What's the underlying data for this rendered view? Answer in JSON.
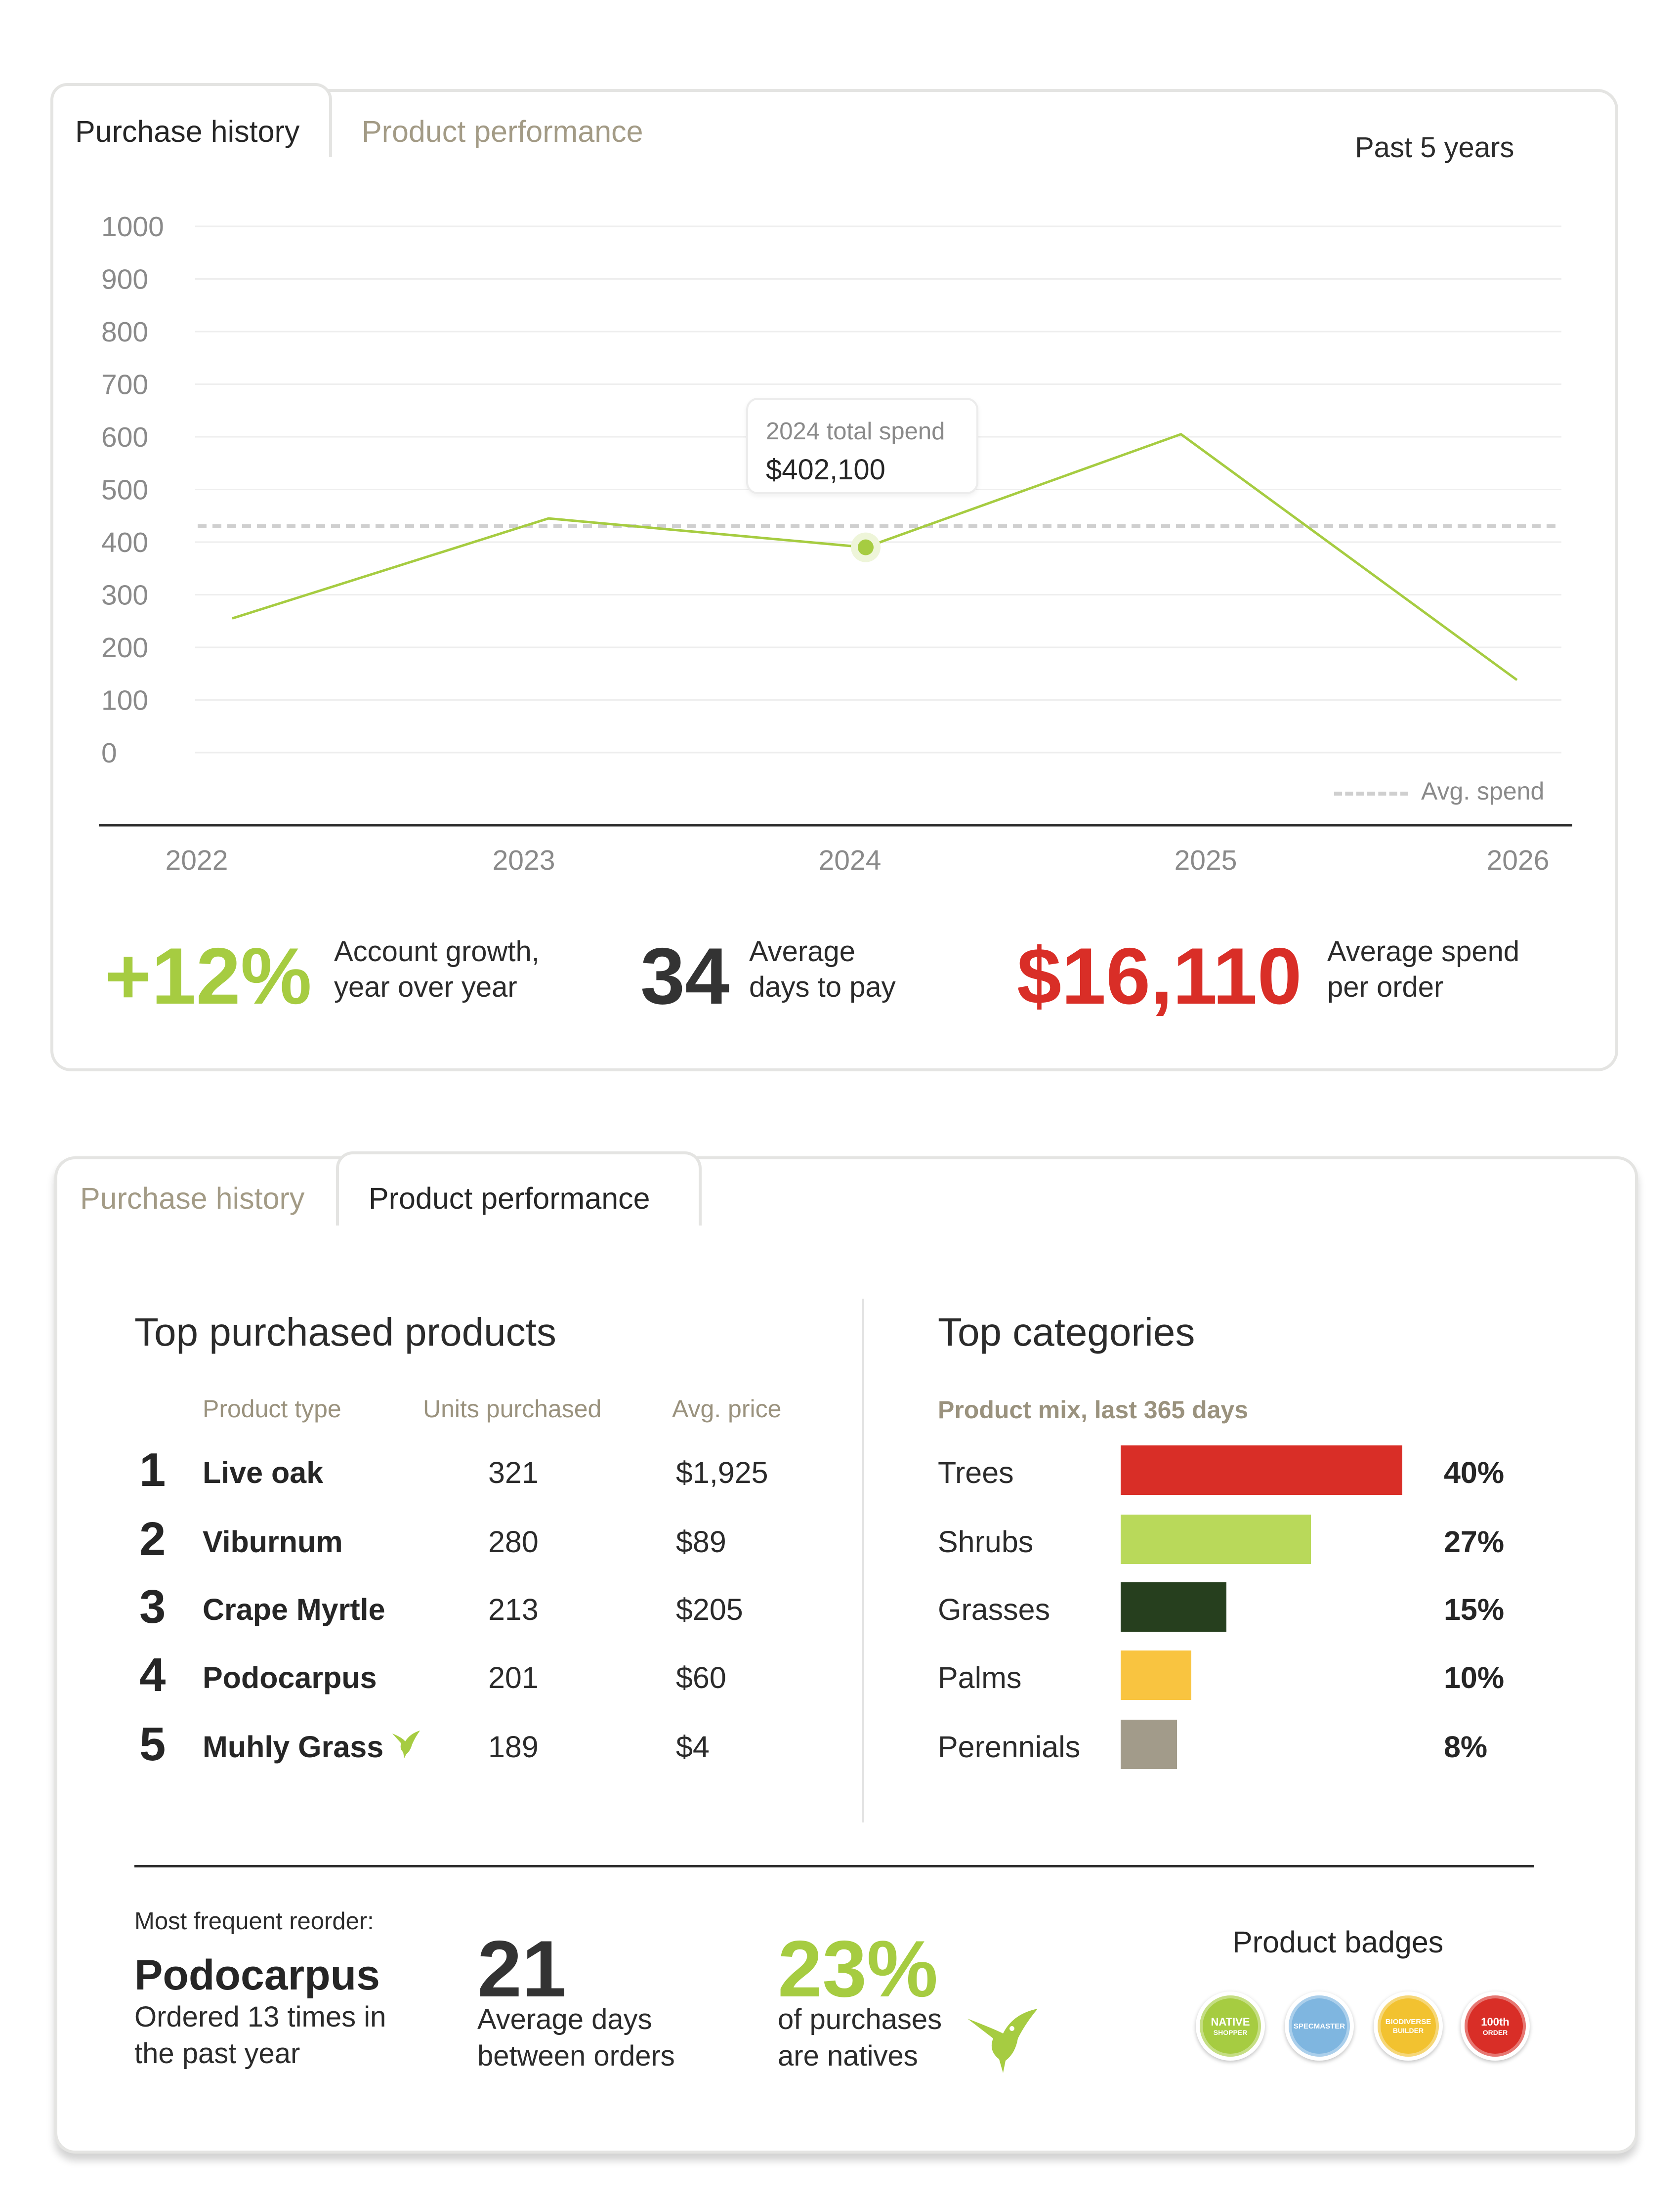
{
  "panel1": {
    "tabs": [
      {
        "label": "Purchase history",
        "active": true
      },
      {
        "label": "Product performance",
        "active": false
      }
    ],
    "period": "Past 5 years",
    "tooltip": {
      "title": "2024 total spend",
      "value": "$402,100"
    },
    "legend": "Avg. spend",
    "stats": [
      {
        "value": "+12%",
        "label_line1": "Account growth,",
        "label_line2": "year over year",
        "color": "#a6cc41"
      },
      {
        "value": "34",
        "label_line1": "Average",
        "label_line2": "days to pay",
        "color": "#333333"
      },
      {
        "value": "$16,110",
        "label_line1": "Average spend",
        "label_line2": "per order",
        "color": "#d92e27"
      }
    ]
  },
  "chart_data": {
    "type": "line",
    "x": [
      "2022",
      "2023",
      "2024",
      "2025",
      "2026"
    ],
    "yticks": [
      "0",
      "100",
      "200",
      "300",
      "400",
      "500",
      "600",
      "700",
      "800",
      "900",
      "1000"
    ],
    "ylim": [
      0,
      1000
    ],
    "series": [
      {
        "values": [
          255,
          445,
          390,
          605,
          138
        ],
        "color": "#a6cc41"
      },
      {
        "name": "Avg. spend",
        "values": [
          430,
          430,
          430,
          430,
          430
        ],
        "style": "dashed",
        "color": "#cfcfcf"
      }
    ],
    "highlight_index": 2,
    "grid": true
  },
  "panel2": {
    "tabs": [
      {
        "label": "Purchase history",
        "active": false
      },
      {
        "label": "Product performance",
        "active": true
      }
    ],
    "top_products": {
      "title": "Top purchased products",
      "headers": [
        "Product type",
        "Units purchased",
        "Avg. price"
      ],
      "rows": [
        {
          "rank": "1",
          "name": "Live oak",
          "units": "321",
          "price": "$1,925",
          "native": false
        },
        {
          "rank": "2",
          "name": "Viburnum",
          "units": "280",
          "price": "$89",
          "native": false
        },
        {
          "rank": "3",
          "name": "Crape Myrtle",
          "units": "213",
          "price": "$205",
          "native": false
        },
        {
          "rank": "4",
          "name": "Podocarpus",
          "units": "201",
          "price": "$60",
          "native": false
        },
        {
          "rank": "5",
          "name": "Muhly Grass",
          "units": "189",
          "price": "$4",
          "native": true
        }
      ]
    },
    "top_categories": {
      "title": "Top categories",
      "subtitle": "Product mix, last 365 days",
      "rows": [
        {
          "name": "Trees",
          "pct": "40%",
          "value": 40,
          "color": "#d92e27"
        },
        {
          "name": "Shrubs",
          "pct": "27%",
          "value": 27,
          "color": "#b9d95a"
        },
        {
          "name": "Grasses",
          "pct": "15%",
          "value": 15,
          "color": "#263f1e"
        },
        {
          "name": "Palms",
          "pct": "10%",
          "value": 10,
          "color": "#f9c440"
        },
        {
          "name": "Perennials",
          "pct": "8%",
          "value": 8,
          "color": "#a29b8a"
        }
      ]
    },
    "reorder": {
      "label": "Most frequent reorder:",
      "product": "Podocarpus",
      "line1": "Ordered 13 times in",
      "line2": "the past year"
    },
    "days": {
      "value": "21",
      "line1": "Average days",
      "line2": "between orders"
    },
    "natives": {
      "value": "23%",
      "line1": "of purchases",
      "line2": "are natives"
    },
    "badges": {
      "title": "Product badges",
      "items": [
        {
          "text1": "NATIVE",
          "text2": "SHOPPER",
          "color": "#a6cc41"
        },
        {
          "text1": "SPECMASTER",
          "text2": "",
          "color": "#7fb6e0"
        },
        {
          "text1": "BIODIVERSE",
          "text2": "BUILDER",
          "color": "#f2c230"
        },
        {
          "text1": "100th",
          "text2": "ORDER",
          "color": "#d92e27"
        }
      ]
    }
  }
}
